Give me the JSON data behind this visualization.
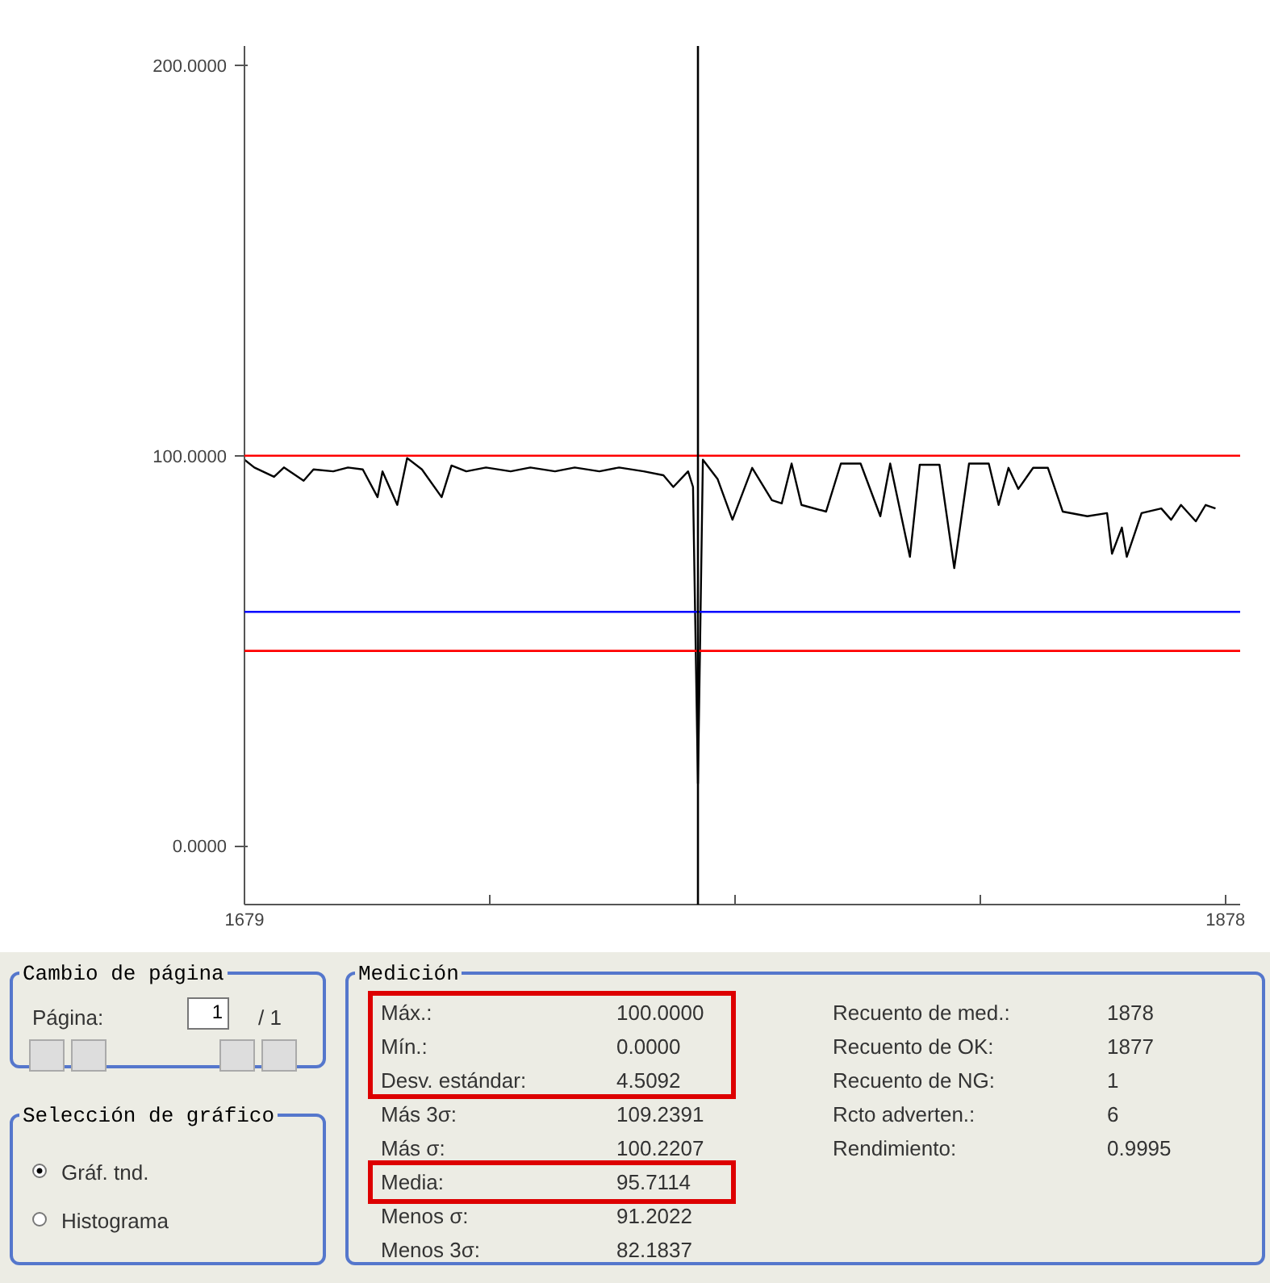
{
  "chart_data": {
    "type": "line",
    "x": [
      1679,
      1681,
      1685,
      1687,
      1691,
      1693,
      1697,
      1700,
      1703,
      1706,
      1707,
      1710,
      1712,
      1715,
      1719,
      1721,
      1724,
      1728,
      1733,
      1737,
      1742,
      1746,
      1751,
      1755,
      1760,
      1764,
      1766,
      1769,
      1770,
      1771,
      1772,
      1775,
      1778,
      1782,
      1786,
      1788,
      1790,
      1792,
      1797,
      1800,
      1804,
      1808,
      1810,
      1814,
      1816,
      1820,
      1823,
      1826,
      1830,
      1832,
      1834,
      1836,
      1839,
      1842,
      1845,
      1850,
      1854,
      1855,
      1857,
      1858,
      1861,
      1865,
      1867,
      1869,
      1872,
      1874,
      1876
    ],
    "series": [
      {
        "color": "#000000",
        "values": [
          99,
          97,
          94.6,
          97,
          93.6,
          96.5,
          96,
          97,
          96.5,
          89.4,
          96,
          87.4,
          99.4,
          96.5,
          89.4,
          97.5,
          96,
          97,
          96,
          97,
          96,
          97,
          96,
          97,
          96,
          95,
          92,
          96,
          92,
          16,
          99,
          94,
          83.6,
          96.9,
          88.6,
          87.8,
          98,
          87.4,
          85.7,
          98,
          98,
          84.5,
          98,
          74.1,
          97.7,
          97.7,
          71.2,
          98,
          98,
          87.4,
          96.9,
          91.5,
          96.9,
          96.9,
          85.7,
          84.5,
          85.3,
          74.9,
          81.6,
          74.1,
          85.3,
          86.5,
          83.6,
          87.4,
          83.2,
          87.4,
          86.5
        ]
      }
    ],
    "xlim": [
      1679,
      1881
    ],
    "ylim": [
      -15,
      205
    ],
    "xticks": [
      1679,
      {
        "value": 1728.75,
        "label": null
      },
      {
        "value": 1778.5,
        "label": null
      },
      {
        "value": 1828.25,
        "label": null
      },
      1878
    ],
    "yticks": [
      {
        "value": 0,
        "label": "0.0000"
      },
      {
        "value": 100,
        "label": "100.0000"
      },
      {
        "value": 200,
        "label": "200.0000"
      }
    ],
    "ref_lines": [
      {
        "axis": "y",
        "value": 100,
        "color": "#ff0000"
      },
      {
        "axis": "y",
        "value": 60,
        "color": "#0000ff"
      },
      {
        "axis": "y",
        "value": 50,
        "color": "#ff0000"
      },
      {
        "axis": "x",
        "value": 1771,
        "color": "#000000"
      }
    ],
    "grid": false,
    "marker": "none",
    "line_style": "solid",
    "annotations": [
      "Cambio de página",
      "Página:",
      "1",
      "/ 1",
      "Selección de gráfico",
      "Gráf. tnd.",
      "Histograma",
      "Medición",
      "Máx.:",
      "100.0000",
      "Mín.:",
      "0.0000",
      "Desv. estándar:",
      "4.5092",
      "Más 3σ:",
      "109.2391",
      "Más σ:",
      "100.2207",
      "Media:",
      "95.7114",
      "Menos σ:",
      "91.2022",
      "Menos 3σ:",
      "82.1837",
      "Recuento de med.:",
      "1878",
      "Recuento de OK:",
      "1877",
      "Recuento de NG:",
      "1",
      "Rcto adverten.:",
      "6",
      "Rendimiento:",
      "0.9995"
    ]
  }
}
